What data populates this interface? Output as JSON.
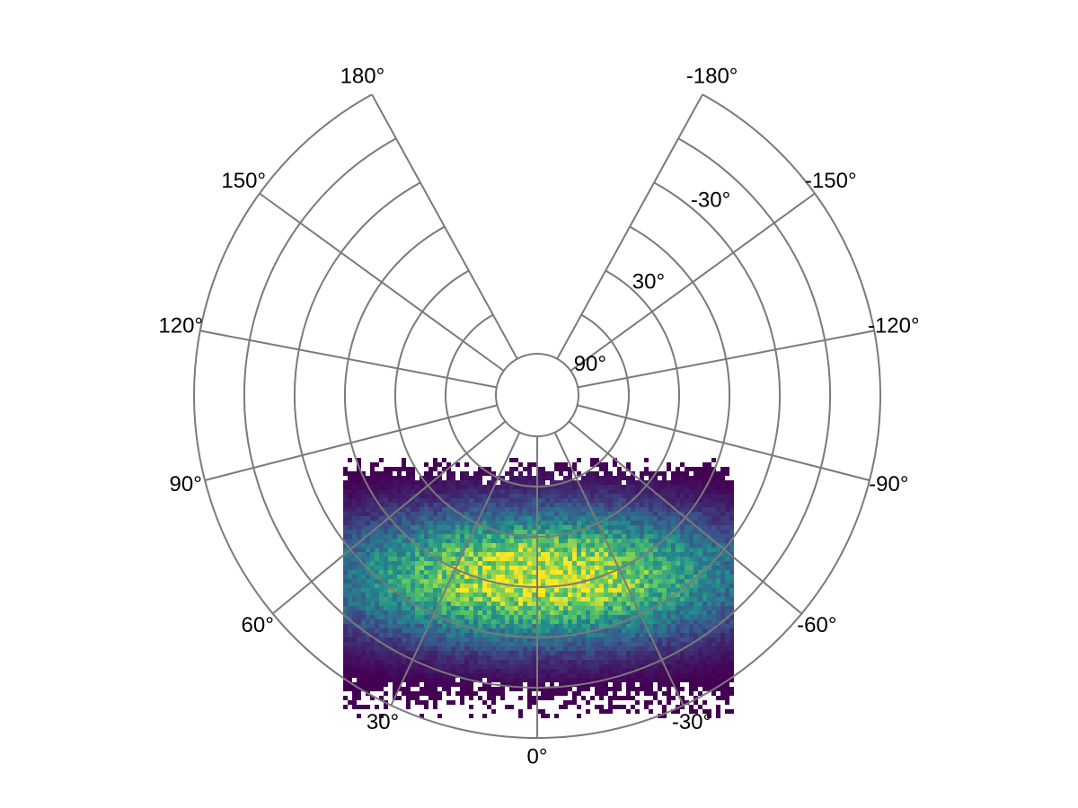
{
  "chart_data": {
    "type": "heatmap",
    "subtype": "2d-histogram",
    "projection": "polar-like (distorted, ~0.85 scale, tilted)",
    "title": "",
    "xlabel": "",
    "ylabel": "",
    "grid": true,
    "grid_color": "#7f7f7f",
    "colormap": "viridis",
    "colors": [
      "#440154",
      "#3b528b",
      "#21908d",
      "#5dc963",
      "#fde725"
    ],
    "longitude_ticks": [
      {
        "value": -180,
        "label": "-180°"
      },
      {
        "value": -150,
        "label": "-150°"
      },
      {
        "value": -120,
        "label": "-120°"
      },
      {
        "value": -90,
        "label": "-90°"
      },
      {
        "value": -60,
        "label": "-60°"
      },
      {
        "value": -30,
        "label": "-30°"
      },
      {
        "value": 0,
        "label": "0°"
      },
      {
        "value": 30,
        "label": "30°"
      },
      {
        "value": 60,
        "label": "60°"
      },
      {
        "value": 90,
        "label": "90°"
      },
      {
        "value": 120,
        "label": "120°"
      },
      {
        "value": 150,
        "label": "150°"
      },
      {
        "value": 180,
        "label": "180°"
      }
    ],
    "latitude_ticks": [
      {
        "value": -30,
        "label": "-30°"
      },
      {
        "value": 30,
        "label": "30°"
      },
      {
        "value": 90,
        "label": "90°"
      }
    ],
    "latitude_rings": [
      -90,
      -60,
      -30,
      0,
      30,
      60,
      90
    ],
    "data_extent": {
      "lon": [
        -65,
        65
      ],
      "lat": [
        -90,
        90
      ]
    },
    "density_peak": {
      "lon": 0,
      "lat": 20
    }
  }
}
